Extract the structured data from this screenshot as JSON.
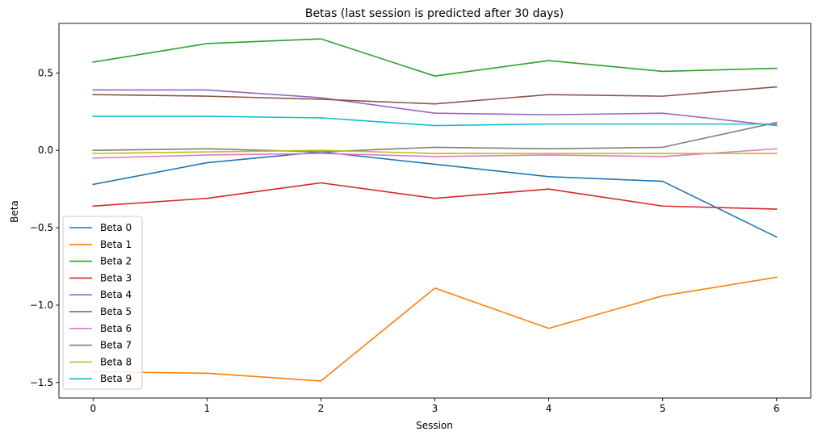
{
  "chart_data": {
    "type": "line",
    "title": "Betas (last session is predicted after 30 days)",
    "xlabel": "Session",
    "ylabel": "Beta",
    "x": [
      0,
      1,
      2,
      3,
      4,
      5,
      6
    ],
    "xlim": [
      -0.3,
      6.3
    ],
    "ylim": [
      -1.6,
      0.82
    ],
    "xticks": [
      0,
      1,
      2,
      3,
      4,
      5,
      6
    ],
    "yticks": [
      -1.5,
      -1.0,
      -0.5,
      0.0,
      0.5
    ],
    "ytick_labels": [
      "−1.5",
      "−1.0",
      "−0.5",
      "0.0",
      "0.5"
    ],
    "grid": false,
    "legend_position": "lower-left",
    "series": [
      {
        "name": "Beta 0",
        "color": "#1f77b4",
        "values": [
          -0.22,
          -0.08,
          -0.01,
          -0.09,
          -0.17,
          -0.2,
          -0.56
        ]
      },
      {
        "name": "Beta 1",
        "color": "#ff7f0e",
        "values": [
          -1.43,
          -1.44,
          -1.49,
          -0.89,
          -1.15,
          -0.94,
          -0.82
        ]
      },
      {
        "name": "Beta 2",
        "color": "#2ca02c",
        "values": [
          0.57,
          0.69,
          0.72,
          0.48,
          0.58,
          0.51,
          0.53
        ]
      },
      {
        "name": "Beta 3",
        "color": "#d62728",
        "values": [
          -0.36,
          -0.31,
          -0.21,
          -0.31,
          -0.25,
          -0.36,
          -0.38
        ]
      },
      {
        "name": "Beta 4",
        "color": "#9467bd",
        "values": [
          0.39,
          0.39,
          0.34,
          0.24,
          0.23,
          0.24,
          0.16
        ]
      },
      {
        "name": "Beta 5",
        "color": "#8c564b",
        "values": [
          0.36,
          0.35,
          0.33,
          0.3,
          0.36,
          0.35,
          0.41
        ]
      },
      {
        "name": "Beta 6",
        "color": "#e377c2",
        "values": [
          -0.05,
          -0.03,
          -0.02,
          -0.04,
          -0.03,
          -0.04,
          0.01
        ]
      },
      {
        "name": "Beta 7",
        "color": "#7f7f7f",
        "values": [
          0.0,
          0.01,
          -0.01,
          0.02,
          0.01,
          0.02,
          0.18
        ]
      },
      {
        "name": "Beta 8",
        "color": "#bcbd22",
        "values": [
          -0.02,
          -0.01,
          0.0,
          -0.02,
          -0.02,
          -0.02,
          -0.02
        ]
      },
      {
        "name": "Beta 9",
        "color": "#17becf",
        "values": [
          0.22,
          0.22,
          0.21,
          0.16,
          0.17,
          0.17,
          0.17
        ]
      }
    ]
  }
}
